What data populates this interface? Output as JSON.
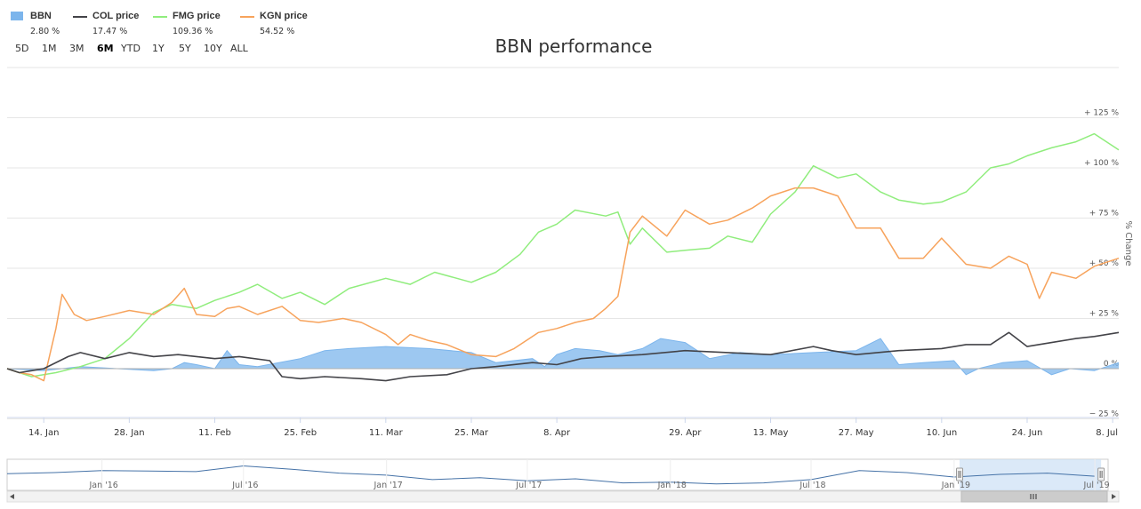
{
  "chart_data": {
    "type": "line",
    "title": "BBN performance",
    "ylabel": "% Change",
    "ylim": [
      -25,
      125
    ],
    "yticks": [
      "− 25 %",
      "0 %",
      "+ 25 %",
      "+ 50 %",
      "+ 75 %",
      "+ 100 %",
      "+ 125 %"
    ],
    "ytick_values": [
      -25,
      0,
      25,
      50,
      75,
      100,
      125
    ],
    "x_start": "2019-01-08",
    "x_end": "2019-07-09",
    "xtick_labels": [
      "14. Jan",
      "28. Jan",
      "11. Feb",
      "25. Feb",
      "11. Mar",
      "25. Mar",
      "8. Apr",
      "29. Apr",
      "13. May",
      "27. May",
      "10. Jun",
      "24. Jun",
      "8. Jul"
    ],
    "xtick_dates": [
      "2019-01-14",
      "2019-01-28",
      "2019-02-11",
      "2019-02-25",
      "2019-03-11",
      "2019-03-25",
      "2019-04-08",
      "2019-04-29",
      "2019-05-13",
      "2019-05-27",
      "2019-06-10",
      "2019-06-24",
      "2019-07-08"
    ],
    "grid": true,
    "legend_position": "top-left",
    "series": [
      {
        "name": "BBN",
        "style": "area",
        "color": "#7cb5ec",
        "change_label": "2.80 %",
        "x": [
          "2019-01-08",
          "2019-01-14",
          "2019-01-20",
          "2019-01-26",
          "2019-02-01",
          "2019-02-04",
          "2019-02-06",
          "2019-02-08",
          "2019-02-11",
          "2019-02-13",
          "2019-02-15",
          "2019-02-18",
          "2019-02-25",
          "2019-03-01",
          "2019-03-05",
          "2019-03-11",
          "2019-03-18",
          "2019-03-25",
          "2019-03-29",
          "2019-04-04",
          "2019-04-06",
          "2019-04-08",
          "2019-04-11",
          "2019-04-15",
          "2019-04-18",
          "2019-04-22",
          "2019-04-25",
          "2019-04-29",
          "2019-05-03",
          "2019-05-08",
          "2019-05-13",
          "2019-05-20",
          "2019-05-27",
          "2019-05-31",
          "2019-06-03",
          "2019-06-07",
          "2019-06-12",
          "2019-06-14",
          "2019-06-16",
          "2019-06-20",
          "2019-06-24",
          "2019-06-28",
          "2019-07-01",
          "2019-07-05",
          "2019-07-09"
        ],
        "values": [
          0,
          -1,
          1,
          0,
          -1,
          0,
          3,
          2,
          0,
          9,
          2,
          1,
          5,
          9,
          10,
          11,
          10,
          8,
          3,
          5,
          1,
          7,
          10,
          9,
          7,
          10,
          15,
          13,
          5,
          8,
          7,
          8,
          9,
          15,
          2,
          3,
          4,
          -3,
          0,
          3,
          4,
          -3,
          0,
          -1,
          3
        ]
      },
      {
        "name": "COL price",
        "style": "line",
        "color": "#434348",
        "change_label": "17.47 %",
        "x": [
          "2019-01-08",
          "2019-01-10",
          "2019-01-12",
          "2019-01-14",
          "2019-01-18",
          "2019-01-20",
          "2019-01-24",
          "2019-01-28",
          "2019-02-01",
          "2019-02-05",
          "2019-02-11",
          "2019-02-15",
          "2019-02-20",
          "2019-02-22",
          "2019-02-25",
          "2019-03-01",
          "2019-03-07",
          "2019-03-11",
          "2019-03-15",
          "2019-03-21",
          "2019-03-25",
          "2019-03-29",
          "2019-04-04",
          "2019-04-08",
          "2019-04-12",
          "2019-04-16",
          "2019-04-22",
          "2019-04-29",
          "2019-05-06",
          "2019-05-13",
          "2019-05-20",
          "2019-05-23",
          "2019-05-27",
          "2019-06-03",
          "2019-06-10",
          "2019-06-14",
          "2019-06-18",
          "2019-06-21",
          "2019-06-24",
          "2019-06-28",
          "2019-07-02",
          "2019-07-05",
          "2019-07-09"
        ],
        "values": [
          0,
          -2,
          -1,
          0,
          6,
          8,
          5,
          8,
          6,
          7,
          5,
          6,
          4,
          -4,
          -5,
          -4,
          -5,
          -6,
          -4,
          -3,
          0,
          1,
          3,
          2,
          5,
          6,
          7,
          9,
          8,
          7,
          11,
          9,
          7,
          9,
          10,
          12,
          12,
          18,
          11,
          13,
          15,
          16,
          18
        ]
      },
      {
        "name": "FMG price",
        "style": "line",
        "color": "#90ed7d",
        "change_label": "109.36 %",
        "x": [
          "2019-01-08",
          "2019-01-12",
          "2019-01-16",
          "2019-01-20",
          "2019-01-24",
          "2019-01-28",
          "2019-02-01",
          "2019-02-04",
          "2019-02-08",
          "2019-02-11",
          "2019-02-15",
          "2019-02-18",
          "2019-02-22",
          "2019-02-25",
          "2019-03-01",
          "2019-03-05",
          "2019-03-11",
          "2019-03-15",
          "2019-03-19",
          "2019-03-25",
          "2019-03-29",
          "2019-04-02",
          "2019-04-05",
          "2019-04-08",
          "2019-04-11",
          "2019-04-16",
          "2019-04-18",
          "2019-04-20",
          "2019-04-22",
          "2019-04-26",
          "2019-04-29",
          "2019-05-03",
          "2019-05-06",
          "2019-05-10",
          "2019-05-13",
          "2019-05-17",
          "2019-05-20",
          "2019-05-24",
          "2019-05-27",
          "2019-05-31",
          "2019-06-03",
          "2019-06-07",
          "2019-06-10",
          "2019-06-14",
          "2019-06-18",
          "2019-06-21",
          "2019-06-24",
          "2019-06-28",
          "2019-07-02",
          "2019-07-05",
          "2019-07-09"
        ],
        "values": [
          0,
          -4,
          -2,
          1,
          5,
          15,
          28,
          32,
          30,
          34,
          38,
          42,
          35,
          38,
          32,
          40,
          45,
          42,
          48,
          43,
          48,
          57,
          68,
          72,
          79,
          76,
          78,
          62,
          70,
          58,
          59,
          60,
          66,
          63,
          77,
          88,
          101,
          95,
          97,
          88,
          84,
          82,
          83,
          88,
          100,
          102,
          106,
          110,
          113,
          117,
          109
        ]
      },
      {
        "name": "KGN price",
        "style": "line",
        "color": "#f7a35c",
        "change_label": "54.52 %",
        "x": [
          "2019-01-08",
          "2019-01-10",
          "2019-01-12",
          "2019-01-14",
          "2019-01-16",
          "2019-01-17",
          "2019-01-19",
          "2019-01-21",
          "2019-01-24",
          "2019-01-28",
          "2019-02-01",
          "2019-02-04",
          "2019-02-06",
          "2019-02-08",
          "2019-02-11",
          "2019-02-13",
          "2019-02-15",
          "2019-02-18",
          "2019-02-22",
          "2019-02-25",
          "2019-02-28",
          "2019-03-04",
          "2019-03-07",
          "2019-03-11",
          "2019-03-13",
          "2019-03-15",
          "2019-03-18",
          "2019-03-21",
          "2019-03-25",
          "2019-03-29",
          "2019-04-01",
          "2019-04-05",
          "2019-04-08",
          "2019-04-11",
          "2019-04-14",
          "2019-04-16",
          "2019-04-18",
          "2019-04-20",
          "2019-04-22",
          "2019-04-26",
          "2019-04-29",
          "2019-05-03",
          "2019-05-06",
          "2019-05-10",
          "2019-05-13",
          "2019-05-17",
          "2019-05-20",
          "2019-05-24",
          "2019-05-27",
          "2019-05-31",
          "2019-06-03",
          "2019-06-07",
          "2019-06-10",
          "2019-06-14",
          "2019-06-18",
          "2019-06-21",
          "2019-06-24",
          "2019-06-26",
          "2019-06-28",
          "2019-07-02",
          "2019-07-05",
          "2019-07-09"
        ],
        "values": [
          0,
          -2,
          -3,
          -6,
          20,
          37,
          27,
          24,
          26,
          29,
          27,
          33,
          40,
          27,
          26,
          30,
          31,
          27,
          31,
          24,
          23,
          25,
          23,
          17,
          12,
          17,
          14,
          12,
          7,
          6,
          10,
          18,
          20,
          23,
          25,
          30,
          36,
          68,
          76,
          66,
          79,
          72,
          74,
          80,
          86,
          90,
          90,
          86,
          70,
          70,
          55,
          55,
          65,
          52,
          50,
          56,
          52,
          35,
          48,
          45,
          51,
          55
        ]
      }
    ]
  },
  "legend": [
    {
      "name": "BBN",
      "value": "2.80 %"
    },
    {
      "name": "COL price",
      "value": "17.47 %"
    },
    {
      "name": "FMG price",
      "value": "109.36 %"
    },
    {
      "name": "KGN price",
      "value": "54.52 %"
    }
  ],
  "range_selector": {
    "buttons": [
      "5D",
      "1M",
      "3M",
      "6M",
      "YTD",
      "1Y",
      "5Y",
      "10Y",
      "ALL"
    ],
    "selected": "6M"
  },
  "navigator": {
    "labels": [
      "Jan '16",
      "Jul '16",
      "Jan '17",
      "Jul '17",
      "Jan '18",
      "Jul '18",
      "Jan '19",
      "Jul '19"
    ],
    "label_dates": [
      "2016-01-01",
      "2016-07-01",
      "2017-01-01",
      "2017-07-01",
      "2018-01-01",
      "2018-07-01",
      "2019-01-01",
      "2019-07-01"
    ],
    "start": "2015-09-01",
    "end": "2019-07-18",
    "window_start": "2019-01-08",
    "window_end": "2019-07-09",
    "series_x": [
      "2015-09-01",
      "2015-11-01",
      "2016-01-01",
      "2016-03-01",
      "2016-05-01",
      "2016-07-01",
      "2016-09-01",
      "2016-11-01",
      "2017-01-01",
      "2017-03-01",
      "2017-05-01",
      "2017-07-01",
      "2017-09-01",
      "2017-11-01",
      "2018-01-01",
      "2018-03-01",
      "2018-05-01",
      "2018-07-01",
      "2018-09-01",
      "2018-11-01",
      "2019-01-01",
      "2019-03-01",
      "2019-05-01",
      "2019-07-01"
    ],
    "series_values": [
      58,
      62,
      70,
      68,
      66,
      88,
      75,
      60,
      52,
      35,
      42,
      30,
      38,
      22,
      25,
      18,
      22,
      35,
      70,
      62,
      45,
      55,
      60,
      48
    ]
  }
}
